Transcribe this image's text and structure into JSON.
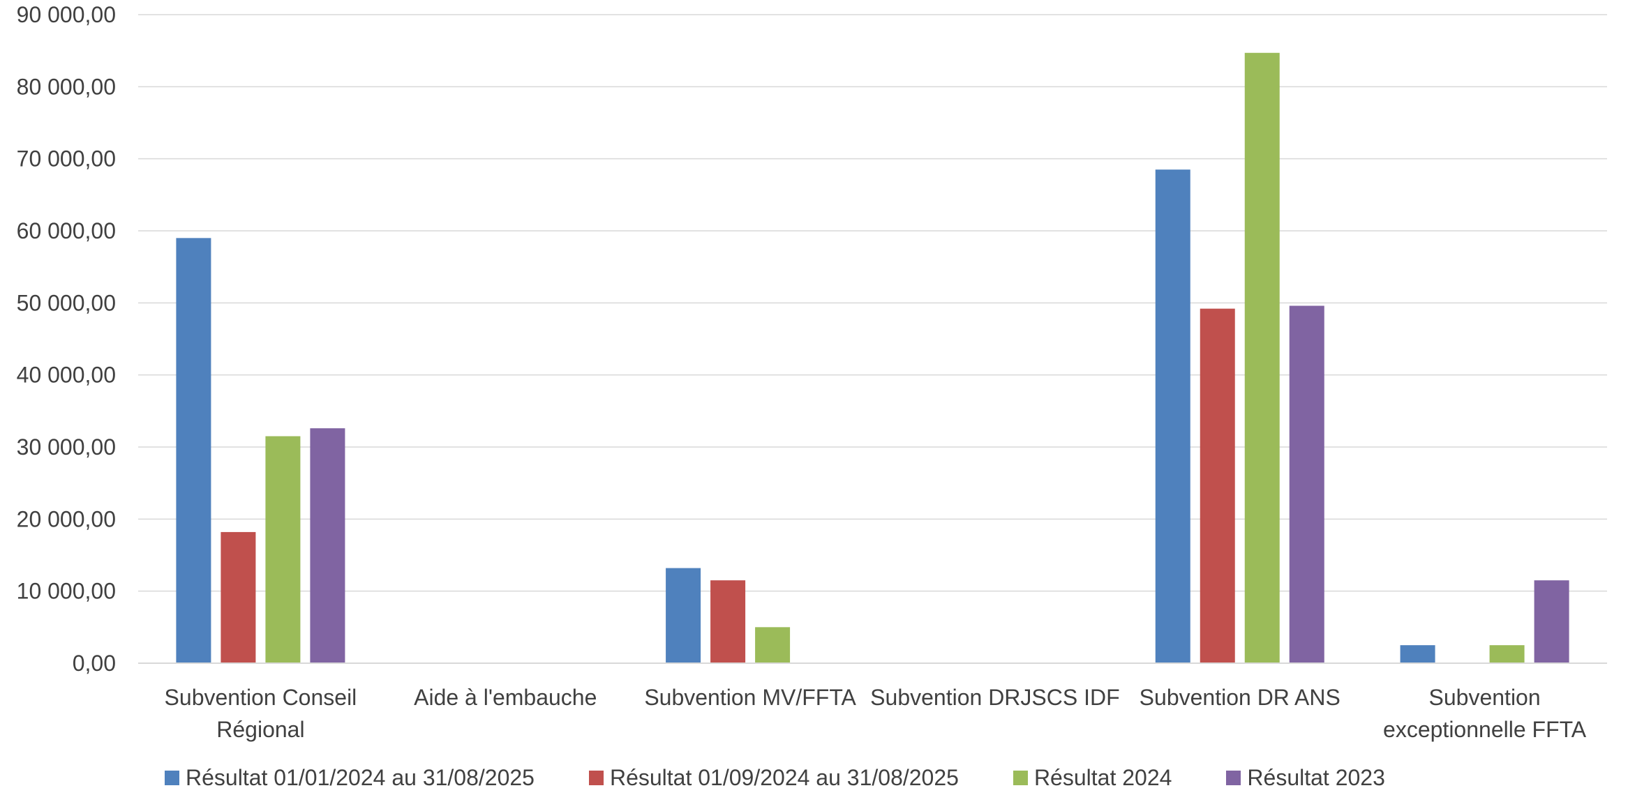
{
  "chart_data": {
    "type": "bar",
    "title": "",
    "xlabel": "",
    "ylabel": "",
    "ylim": [
      0,
      90000
    ],
    "yticks": [
      "0,00",
      "10 000,00",
      "20 000,00",
      "30 000,00",
      "40 000,00",
      "50 000,00",
      "60 000,00",
      "70 000,00",
      "80 000,00",
      "90 000,00"
    ],
    "ytick_values": [
      0,
      10000,
      20000,
      30000,
      40000,
      50000,
      60000,
      70000,
      80000,
      90000
    ],
    "grid": true,
    "legend_position": "bottom",
    "categories": [
      [
        "Subvention Conseil",
        "Régional"
      ],
      [
        "Aide à l'embauche"
      ],
      [
        "Subvention MV/FFTA"
      ],
      [
        "Subvention DRJSCS IDF"
      ],
      [
        "Subvention DR  ANS"
      ],
      [
        "Subvention",
        "exceptionnelle FFTA"
      ]
    ],
    "series": [
      {
        "name": "Résultat 01/01/2024 au 31/08/2025",
        "color": "#4F81BD",
        "values": [
          59000,
          0,
          13200,
          0,
          68500,
          2500
        ]
      },
      {
        "name": "Résultat 01/09/2024 au 31/08/2025",
        "color": "#C0504D",
        "values": [
          18200,
          0,
          11500,
          0,
          49200,
          0
        ]
      },
      {
        "name": "Résultat 2024",
        "color": "#9BBB59",
        "values": [
          31500,
          0,
          5000,
          0,
          84700,
          2500
        ]
      },
      {
        "name": "Résultat 2023",
        "color": "#8064A2",
        "values": [
          32600,
          0,
          0,
          0,
          49600,
          11500
        ]
      }
    ]
  }
}
